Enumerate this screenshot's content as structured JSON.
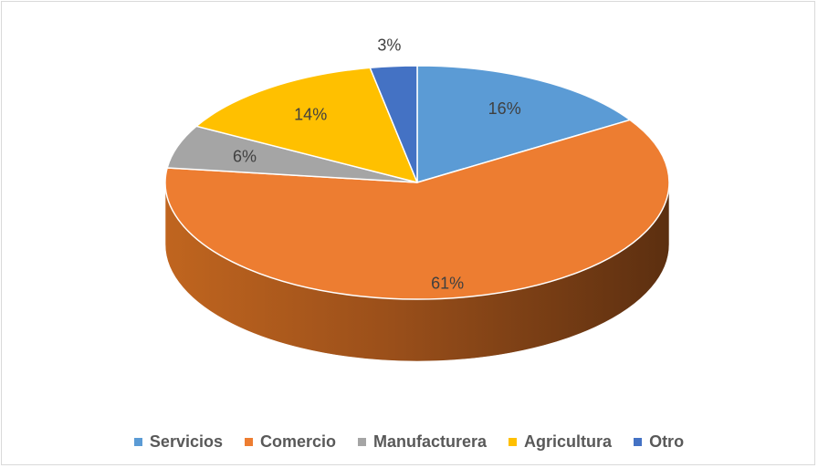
{
  "chart_data": {
    "type": "pie",
    "title": "",
    "categories": [
      "Servicios",
      "Comercio",
      "Manufacturera",
      "Agricultura",
      "Otro"
    ],
    "values": [
      16,
      61,
      6,
      14,
      3
    ],
    "data_labels": [
      "16%",
      "61%",
      "6%",
      "14%",
      "3%"
    ],
    "colors": [
      "#5b9bd5",
      "#ed7d31",
      "#a5a5a5",
      "#ffc000",
      "#4472c4"
    ],
    "legend": "bottom",
    "style": "3d"
  },
  "legend": {
    "items": [
      {
        "label": "Servicios",
        "color": "#5b9bd5"
      },
      {
        "label": "Comercio",
        "color": "#ed7d31"
      },
      {
        "label": "Manufacturera",
        "color": "#a5a5a5"
      },
      {
        "label": "Agricultura",
        "color": "#ffc000"
      },
      {
        "label": "Otro",
        "color": "#4472c4"
      }
    ]
  }
}
